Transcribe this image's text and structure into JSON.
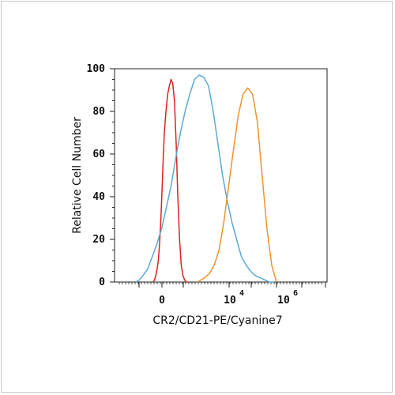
{
  "chart_data": {
    "type": "line",
    "title": "",
    "xlabel": "CR2/CD21-PE/Cyanine7",
    "ylabel": "Relative Cell Number",
    "x_scale": "biexponential",
    "xlim": [
      -1500,
      10000000
    ],
    "ylim": [
      0,
      100
    ],
    "y_ticks": [
      0,
      20,
      40,
      60,
      80,
      100
    ],
    "x_ticks": [
      {
        "base": "0",
        "exp": ""
      },
      {
        "base": "10",
        "exp": "4"
      },
      {
        "base": "10",
        "exp": "6"
      }
    ],
    "series": [
      {
        "color": "#e02020",
        "x": [
          -10,
          5,
          20,
          35,
          50,
          65,
          80,
          95,
          105,
          120,
          140,
          160,
          180,
          200,
          220,
          240,
          260,
          280,
          300,
          320,
          340,
          360,
          380,
          400
        ],
        "y": [
          0,
          1,
          3,
          6,
          10,
          18,
          30,
          45,
          55,
          70,
          80,
          88,
          92,
          95,
          93,
          85,
          65,
          40,
          20,
          8,
          3,
          1,
          0,
          0
        ]
      },
      {
        "color": "#5aa9d6",
        "x": [
          -10,
          5,
          20,
          40,
          60,
          80,
          100,
          120,
          140,
          160,
          180,
          200,
          220,
          240,
          260,
          280,
          300,
          320,
          340,
          360,
          380,
          400,
          420,
          440,
          460,
          480,
          500,
          520,
          540,
          560,
          580
        ],
        "y": [
          0,
          1,
          3,
          6,
          12,
          18,
          25,
          35,
          45,
          58,
          70,
          80,
          88,
          95,
          97,
          96,
          92,
          80,
          65,
          50,
          38,
          28,
          20,
          12,
          8,
          5,
          3,
          2,
          1,
          0,
          0
        ],
        "x_note": "plotted on internal scale"
      },
      {
        "color": "#f0932b",
        "x": [
          -10,
          5,
          20,
          40,
          60,
          80,
          100,
          120,
          140,
          160,
          180,
          200,
          220,
          240,
          260,
          280,
          300,
          320
        ],
        "y": [
          0,
          1,
          2,
          4,
          8,
          15,
          28,
          45,
          62,
          78,
          88,
          91,
          88,
          75,
          50,
          25,
          8,
          0
        ]
      }
    ]
  }
}
